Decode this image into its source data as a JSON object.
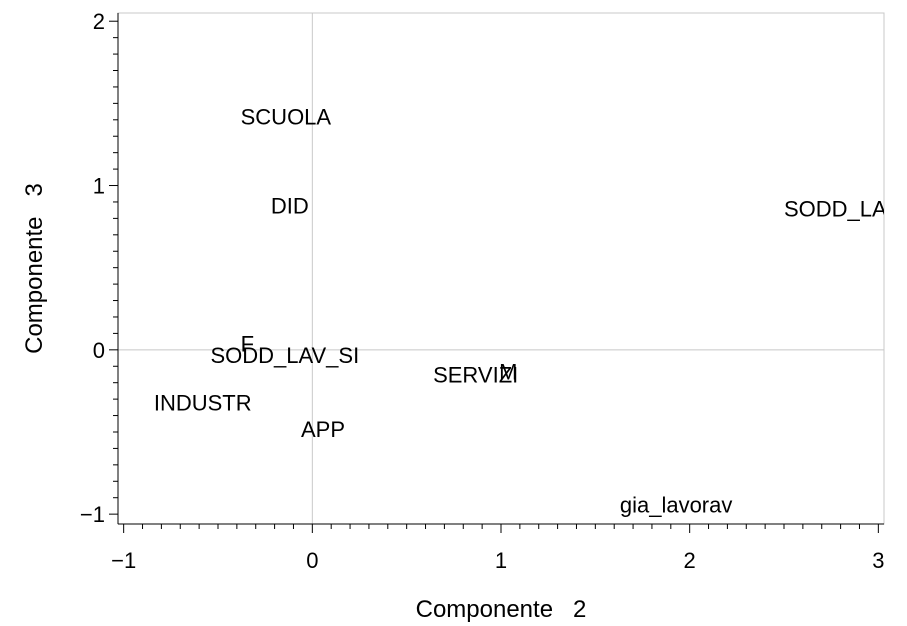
{
  "chart_data": {
    "type": "scatter",
    "xlabel": "Componente   2",
    "ylabel": "Componente   3",
    "xlim": [
      -1.03,
      3.03
    ],
    "ylim": [
      -1.06,
      2.05
    ],
    "x_ticks": [
      {
        "value": -1,
        "label": "−1"
      },
      {
        "value": 0,
        "label": "0"
      },
      {
        "value": 1,
        "label": "1"
      },
      {
        "value": 2,
        "label": "2"
      },
      {
        "value": 3,
        "label": "3"
      }
    ],
    "y_ticks": [
      {
        "value": -1,
        "label": "−1"
      },
      {
        "value": 0,
        "label": "0"
      },
      {
        "value": 1,
        "label": "1"
      },
      {
        "value": 2,
        "label": "2"
      }
    ],
    "reference_lines": {
      "x": 0,
      "y": 0
    },
    "points": [
      {
        "label": "SCUOLA",
        "x": -0.38,
        "y": 1.37
      },
      {
        "label": "DID",
        "x": -0.22,
        "y": 0.83
      },
      {
        "label": "SODD_LAV_NO",
        "x": 2.5,
        "y": 0.81
      },
      {
        "label": "F",
        "x": -0.38,
        "y": -0.01
      },
      {
        "label": "SODD_LAV_SI",
        "x": -0.54,
        "y": -0.08
      },
      {
        "label": "SERVIZI",
        "x": 0.64,
        "y": -0.2
      },
      {
        "label": "M",
        "x": 0.99,
        "y": -0.18
      },
      {
        "label": "INDUSTR",
        "x": -0.84,
        "y": -0.37
      },
      {
        "label": "APP",
        "x": -0.06,
        "y": -0.53
      },
      {
        "label": "gia_lavorav",
        "x": 1.63,
        "y": -0.99
      }
    ]
  }
}
